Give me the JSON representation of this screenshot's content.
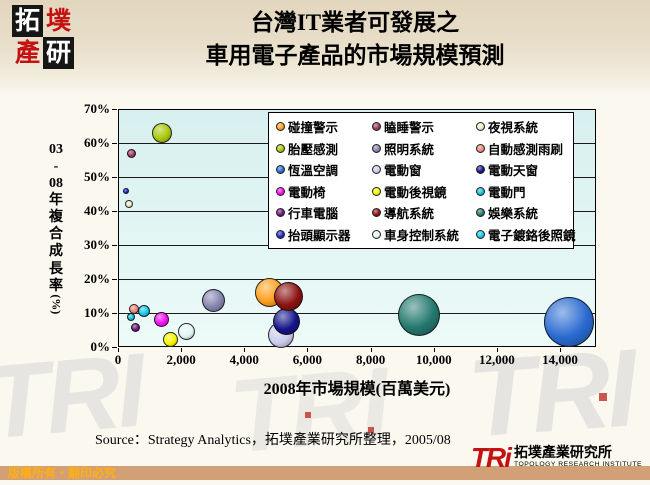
{
  "header": {
    "seal": [
      "拓",
      "墣",
      "產",
      "研"
    ],
    "title_line1": "台灣IT業者可發展之",
    "title_line2": "車用電子產品的市場規模預測"
  },
  "footer": {
    "source": "Source：Strategy Analytics，拓墣產業研究所整理，2005/08",
    "copyright": "版權所有‧翻印必究",
    "tri_short": "TRi",
    "tri_zh": "拓墣產業研究所",
    "tri_en": "TOPOLOGY RESEARCH INSTITUTE",
    "watermark": "TRI"
  },
  "chart_data": {
    "type": "scatter",
    "subtype": "bubble",
    "title": "台灣IT業者可發展之車用電子產品的市場規模預測",
    "xlabel": "2008年市場規模(百萬美元)",
    "ylabel": "03-08年複合成長率(%)",
    "ylabel_stack": [
      "03",
      "-",
      "08",
      "年",
      "複",
      "合",
      "成",
      "長",
      "率",
      "(%)"
    ],
    "xlim": [
      0,
      15100
    ],
    "ylim": [
      0,
      70
    ],
    "grid": "horizontal",
    "legend_position": "inside top-right",
    "x_ticks": [
      0,
      2000,
      4000,
      6000,
      8000,
      10000,
      12000,
      14000
    ],
    "x_tick_labels": [
      "0",
      "2,000",
      "4,000",
      "6,000",
      "8,000",
      "10,000",
      "12,000",
      "14,000"
    ],
    "y_ticks": [
      0,
      10,
      20,
      30,
      40,
      50,
      60,
      70
    ],
    "y_tick_labels": [
      "0%",
      "10%",
      "20%",
      "30%",
      "40%",
      "50%",
      "60%",
      "70%"
    ],
    "legend_order": [
      "碰撞警示",
      "胎壓感測",
      "恆溫空調",
      "電動椅",
      "行車電腦",
      "抬頭顯示器",
      "瞌睡警示",
      "照明系統",
      "電動窗",
      "電動後視鏡",
      "導航系統",
      "車身控制系統",
      "夜視系統",
      "自動感測雨刷",
      "電動天窗",
      "電動門",
      "娛樂系統",
      "電子鍍鉻後照鏡"
    ],
    "series": [
      {
        "name": "胎壓感測",
        "color": "#A9C80A",
        "x": 1390,
        "y": 63,
        "r": 10
      },
      {
        "name": "瞌睡警示",
        "color": "#97395F",
        "x": 440,
        "y": 57,
        "r": 4.5
      },
      {
        "name": "抬頭顯示器",
        "color": "#2328C8",
        "x": 250,
        "y": 46,
        "r": 3
      },
      {
        "name": "夜視系統",
        "color": "#EDE9C8",
        "x": 350,
        "y": 42,
        "r": 4
      },
      {
        "name": "照明系統",
        "color": "#8484AE",
        "x": 3040,
        "y": 13.8,
        "r": 11.5
      },
      {
        "name": "車身控制系統",
        "color": "#E2F6F4",
        "x": 2185,
        "y": 4.7,
        "r": 8.5
      },
      {
        "name": "電動後視鏡",
        "color": "#F6F600",
        "x": 1650,
        "y": 2.1,
        "r": 7.5
      },
      {
        "name": "電動椅",
        "color": "#F60EF6",
        "x": 1390,
        "y": 8,
        "r": 7.5
      },
      {
        "name": "自動感測雨刷",
        "color": "#EC8A7A",
        "x": 510,
        "y": 11.2,
        "r": 5
      },
      {
        "name": "電動門",
        "color": "#18BCDC",
        "x": 410,
        "y": 8.8,
        "r": 4
      },
      {
        "name": "電子鍍鉻後照鏡",
        "color": "#17C8E8",
        "x": 820,
        "y": 10.6,
        "r": 6
      },
      {
        "name": "行車電腦",
        "color": "#6A1878",
        "x": 540,
        "y": 5.6,
        "r": 4.5
      },
      {
        "name": "電動窗",
        "color": "#CBCBEC",
        "x": 5160,
        "y": 3.5,
        "r": 13
      },
      {
        "name": "電動天窗",
        "color": "#141489",
        "x": 5350,
        "y": 7.4,
        "r": 13.5
      },
      {
        "name": "碰撞警示",
        "color": "#FFA01E",
        "x": 4800,
        "y": 15.9,
        "r": 14.5
      },
      {
        "name": "導航系統",
        "color": "#8C1212",
        "x": 5385,
        "y": 15,
        "r": 14.5
      },
      {
        "name": "娛樂系統",
        "color": "#23786E",
        "x": 9530,
        "y": 9.4,
        "r": 21
      },
      {
        "name": "恆溫空調",
        "color": "#2A6AD0",
        "x": 14280,
        "y": 7.4,
        "r": 25
      }
    ]
  }
}
